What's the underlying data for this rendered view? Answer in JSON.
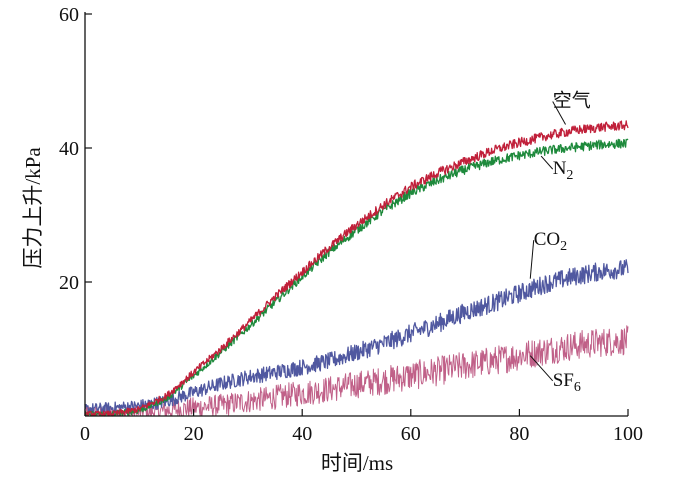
{
  "chart_data": {
    "type": "line",
    "xlabel": "时间/ms",
    "ylabel": "压力上升/kPa",
    "xlim": [
      0,
      100
    ],
    "ylim": [
      0,
      60
    ],
    "x_ticks": [
      "0",
      "20",
      "40",
      "60",
      "80",
      "100"
    ],
    "y_ticks": [
      "20",
      "40",
      "60"
    ],
    "grid": false,
    "legend": "direct labels on curves",
    "series": [
      {
        "name": "空气",
        "color": "#c0203a",
        "noise": 0.7,
        "x": [
          0,
          5,
          10,
          15,
          20,
          25,
          30,
          35,
          40,
          45,
          50,
          55,
          60,
          65,
          70,
          75,
          80,
          85,
          90,
          95,
          100
        ],
        "values": [
          0.3,
          0.3,
          1.0,
          3.0,
          6.5,
          10.0,
          13.8,
          17.8,
          21.5,
          25.2,
          28.5,
          31.5,
          34.2,
          36.3,
          38.0,
          39.6,
          40.8,
          41.8,
          42.6,
          43.1,
          43.4
        ]
      },
      {
        "name": "N2",
        "color": "#1e8a3c",
        "noise": 0.7,
        "x": [
          0,
          5,
          10,
          15,
          20,
          25,
          30,
          35,
          40,
          45,
          50,
          55,
          60,
          65,
          70,
          75,
          80,
          85,
          90,
          95,
          100
        ],
        "values": [
          0.3,
          0.3,
          0.8,
          2.6,
          6.0,
          9.5,
          13.2,
          17.0,
          20.8,
          24.5,
          27.7,
          30.7,
          33.3,
          35.2,
          36.8,
          38.0,
          38.9,
          39.6,
          40.1,
          40.5,
          40.7
        ]
      },
      {
        "name": "CO2",
        "color": "#5058a0",
        "noise": 1.4,
        "x": [
          0,
          5,
          10,
          15,
          20,
          25,
          30,
          35,
          40,
          45,
          50,
          55,
          60,
          65,
          70,
          75,
          80,
          85,
          90,
          95,
          100
        ],
        "values": [
          1.0,
          1.2,
          1.5,
          2.2,
          3.5,
          4.8,
          5.8,
          6.5,
          7.3,
          8.2,
          9.5,
          10.8,
          12.3,
          13.8,
          15.5,
          16.8,
          18.3,
          19.8,
          20.8,
          21.6,
          22.0
        ]
      },
      {
        "name": "SF6",
        "color": "#c06088",
        "noise": 2.2,
        "x": [
          0,
          5,
          10,
          15,
          20,
          25,
          30,
          35,
          40,
          45,
          50,
          55,
          60,
          65,
          70,
          75,
          80,
          85,
          90,
          95,
          100
        ],
        "values": [
          0.3,
          0.3,
          0.5,
          0.8,
          1.2,
          1.6,
          2.2,
          2.8,
          3.4,
          4.0,
          4.7,
          5.3,
          6.0,
          6.7,
          7.5,
          8.2,
          9.0,
          9.8,
          10.5,
          11.0,
          11.3
        ]
      }
    ],
    "labels": [
      {
        "series": "空气",
        "main": "空气",
        "sub": "",
        "x": 86.5,
        "y": 46.2,
        "tx": 88.5,
        "ty": 43.5
      },
      {
        "series": "N2",
        "main": "N",
        "sub": "2",
        "x": 86.5,
        "y": 36.1,
        "tx": 84,
        "ty": 38.8
      },
      {
        "series": "CO2",
        "main": "CO",
        "sub": "2",
        "x": 83,
        "y": 25.5,
        "tx": 82,
        "ty": 20.5
      },
      {
        "series": "SF6",
        "main": "SF",
        "sub": "6",
        "x": 86.5,
        "y": 4.5,
        "tx": 82,
        "ty": 9
      }
    ]
  }
}
